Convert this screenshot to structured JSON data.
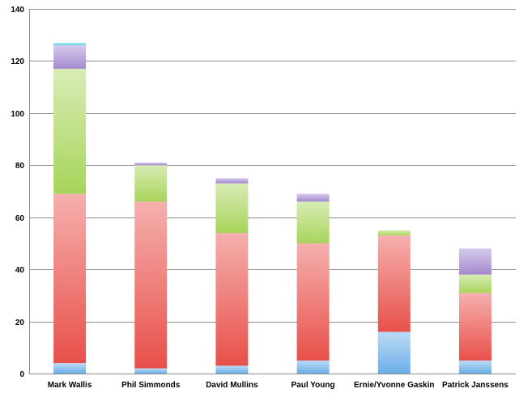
{
  "chart_data": {
    "type": "bar",
    "stacked": true,
    "categories": [
      "Mark Wallis",
      "Phil Simmonds",
      "David Mullins",
      "Paul Young",
      "Ernie/Yvonne Gaskin",
      "Patrick Janssens"
    ],
    "series": [
      {
        "color": "#6aaee8",
        "values": [
          4,
          2,
          3,
          5,
          16,
          5
        ]
      },
      {
        "color": "#e8504a",
        "values": [
          65,
          64,
          51,
          45,
          37,
          26
        ]
      },
      {
        "color": "#a8d45a",
        "values": [
          48,
          14,
          19,
          16,
          2,
          7
        ]
      },
      {
        "color": "#a389d0",
        "values": [
          9,
          1,
          2,
          3,
          0,
          10
        ]
      },
      {
        "color": "#5cd2e0",
        "values": [
          1,
          0,
          0,
          0,
          0,
          0
        ]
      }
    ],
    "ylim": [
      0,
      140
    ],
    "yticks": [
      0,
      20,
      40,
      60,
      80,
      100,
      120,
      140
    ],
    "grid": true,
    "title": "",
    "xlabel": "",
    "ylabel": ""
  }
}
